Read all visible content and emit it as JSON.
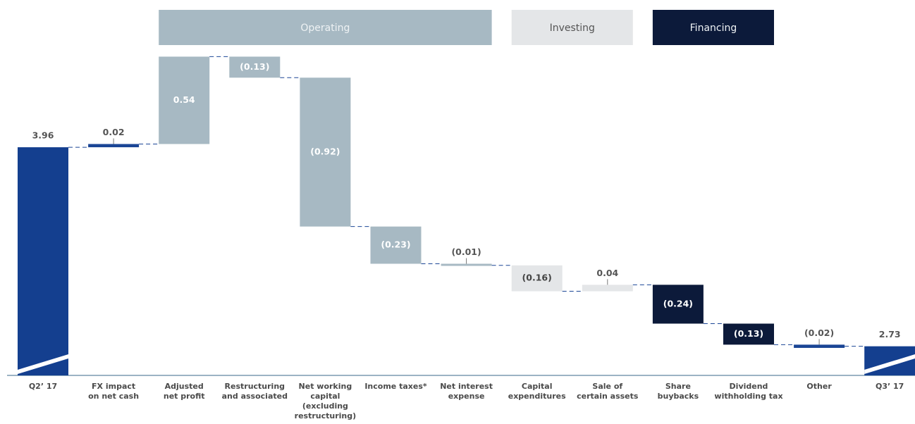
{
  "chart_data": {
    "type": "waterfall",
    "categories": [
      "Q2’ 17",
      "FX impact\non net cash",
      "Adjusted\nnet profit",
      "Restructuring\nand associated",
      "Net working\ncapital\n(excluding\nrestructuring)",
      "Income taxes*",
      "Net interest\nexpense",
      "Capital\nexpenditures",
      "Sale of\ncertain assets",
      "Share\nbuybacks",
      "Dividend\nwithholding tax",
      "Other",
      "Q3’ 17"
    ],
    "values": [
      3.96,
      0.02,
      0.54,
      -0.13,
      -0.92,
      -0.23,
      -0.01,
      -0.16,
      0.04,
      -0.24,
      -0.13,
      -0.02,
      2.73
    ],
    "value_labels": [
      "3.96",
      "0.02",
      "0.54",
      "(0.13)",
      "(0.92)",
      "(0.23)",
      "(0.01)",
      "(0.16)",
      "0.04",
      "(0.24)",
      "(0.13)",
      "(0.02)",
      "2.73"
    ],
    "measures": [
      "absolute",
      "relative",
      "relative",
      "relative",
      "relative",
      "relative",
      "relative",
      "relative",
      "relative",
      "relative",
      "relative",
      "relative",
      "absolute"
    ],
    "colors": [
      "#143f8f",
      "#1a4595",
      "#a7b9c3",
      "#a7b9c3",
      "#a7b9c3",
      "#a7b9c3",
      "#a7b9c3",
      "#e4e6e8",
      "#e4e6e8",
      "#0c1a3a",
      "#0c1a3a",
      "#1a4595",
      "#143f8f"
    ],
    "groups": [
      {
        "name": "Operating",
        "color": "#a7b9c3",
        "span": [
          2,
          6
        ]
      },
      {
        "name": "Investing",
        "color": "#e4e6e8",
        "span": [
          7,
          8
        ]
      },
      {
        "name": "Financing",
        "color": "#0c1a3a",
        "span": [
          9,
          10
        ]
      }
    ],
    "ylim": [
      2.55,
      4.87
    ]
  }
}
